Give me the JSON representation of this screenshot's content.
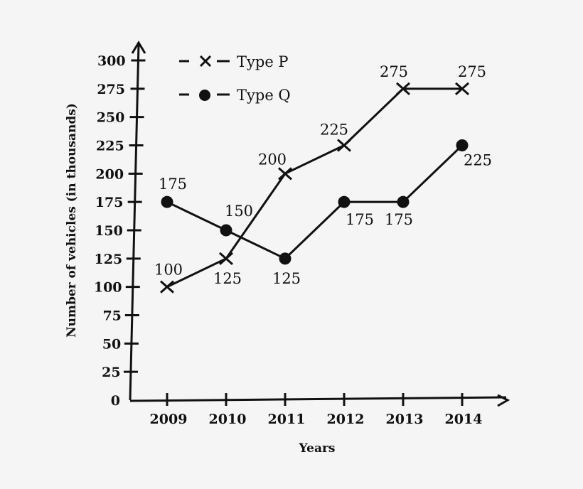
{
  "chart_data": {
    "type": "line",
    "title": "",
    "xlabel": "Years",
    "ylabel": "Number of vehicles (in thousands)",
    "categories": [
      "2009",
      "2010",
      "2011",
      "2012",
      "2013",
      "2014"
    ],
    "series": [
      {
        "name": "Type P",
        "marker": "cross",
        "values": [
          100,
          125,
          200,
          225,
          275,
          275
        ]
      },
      {
        "name": "Type Q",
        "marker": "dot",
        "values": [
          175,
          150,
          125,
          175,
          175,
          225
        ]
      }
    ],
    "yticks": [
      0,
      25,
      50,
      75,
      100,
      125,
      150,
      175,
      200,
      225,
      250,
      275,
      300
    ],
    "ylim": [
      0,
      300
    ],
    "grid": false,
    "legend_position": "top-left",
    "colors": {
      "line": "#111111",
      "background": "#f5f5f5"
    }
  }
}
